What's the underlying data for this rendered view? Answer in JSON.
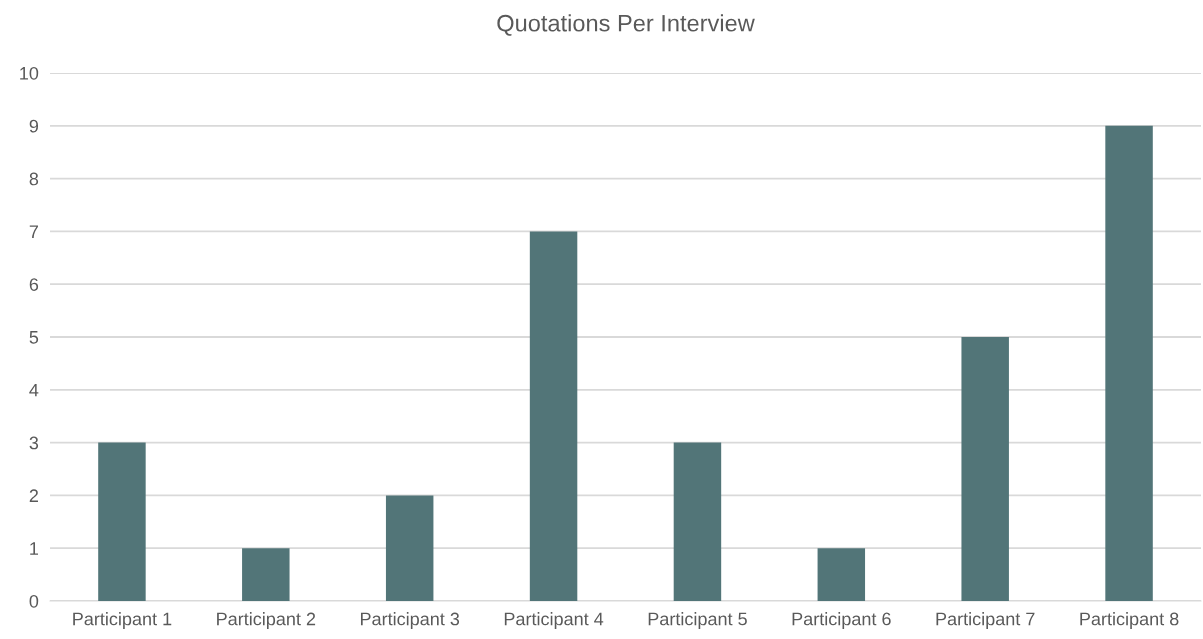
{
  "chart_data": {
    "type": "bar",
    "title": "Quotations Per Interview",
    "categories": [
      "Participant 1",
      "Participant 2",
      "Participant 3",
      "Participant 4",
      "Participant 5",
      "Participant 6",
      "Participant 7",
      "Participant 8"
    ],
    "values": [
      3,
      1,
      2,
      7,
      3,
      1,
      5,
      9
    ],
    "color": "#527578",
    "ylim": [
      0,
      10
    ],
    "yticks": [
      0,
      1,
      2,
      3,
      4,
      5,
      6,
      7,
      8,
      9,
      10
    ],
    "grid": "y"
  }
}
